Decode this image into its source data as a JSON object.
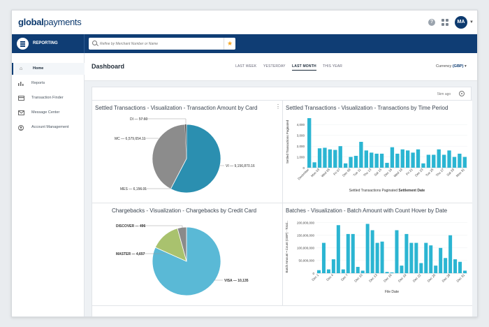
{
  "brand": {
    "logo_bold": "global",
    "logo_light": "payments"
  },
  "topbar": {
    "help_icon": "?",
    "avatar_initials": "MA"
  },
  "reporting": {
    "label": "REPORTING"
  },
  "search": {
    "placeholder": "Refine by Merchant Number or Name"
  },
  "sidebar": {
    "items": [
      {
        "label": "Home",
        "icon": "home-icon",
        "active": true
      },
      {
        "label": "Reports",
        "icon": "bar-chart-icon"
      },
      {
        "label": "Transaction Finder",
        "icon": "card-icon"
      },
      {
        "label": "Message Center",
        "icon": "envelope-icon"
      },
      {
        "label": "Account Management",
        "icon": "user-circle-icon"
      }
    ]
  },
  "header": {
    "title": "Dashboard",
    "ranges": [
      "LAST WEEK",
      "YESTERDAY",
      "LAST MONTH",
      "THIS YEAR"
    ],
    "active_range": "LAST MONTH",
    "currency_label": "Currency",
    "currency_value": "(GBP)"
  },
  "panel": {
    "updated": "5km ago"
  },
  "colors": {
    "brand": "#0f3d74",
    "bar": "#2bb5d2",
    "visa": "#5ab9d6",
    "master": "#a9c26e",
    "grey": "#8a8a8a"
  },
  "widgets": {
    "w1": {
      "title": "Settled Transactions - Visualization - Transaction Amount by Card"
    },
    "w2": {
      "title": "Settled Transactions - Visualization - Transactions by Time Period"
    },
    "w3": {
      "title": "Chargebacks - Visualization - Chargebacks by Credit Card"
    },
    "w4": {
      "title": "Batches - Visualization - Batch Amount with Count Hover by Date"
    }
  },
  "chart_data": [
    {
      "type": "pie",
      "labels": [
        "DI",
        "MC",
        "MES",
        "VI"
      ],
      "values": [
        57.6,
        6579654.11,
        6156.31,
        9156870.16
      ],
      "label_texts": [
        "DI — 57.60",
        "MC — 6,579,654.11",
        "MES — 6,156.31",
        "VI — 9,156,870.16"
      ],
      "colors": [
        "#9b9b9b",
        "#8c8c8c",
        "#6a6a6a",
        "#2b8fb0"
      ]
    },
    {
      "type": "bar",
      "ylabel": "Settled Transactions Paginated",
      "xlabel_prefix": "Settled Transactions Paginated",
      "xlabel_bold": "Settlement Date",
      "yticks": [
        0,
        1000,
        2000,
        3000,
        4000
      ],
      "ytick_labels": [
        "0",
        "1,000",
        "2,000",
        "3,000",
        "4,000"
      ],
      "ylim": [
        0,
        4800
      ],
      "xtick_labels": [
        "December",
        "Mon 03",
        "Wed 05",
        "Fri 07",
        "Dec 09",
        "Tue 11",
        "Thu 13",
        "Sat 15",
        "Dec 16",
        "Wed 19",
        "Fri 21",
        "Dec 23",
        "Tue 25",
        "Thu 27",
        "Sat 29",
        "Mon 31"
      ],
      "values": [
        4600,
        500,
        1800,
        1850,
        1700,
        1650,
        2000,
        400,
        1000,
        1100,
        2400,
        1600,
        1400,
        1300,
        1300,
        450,
        1900,
        1300,
        1700,
        1600,
        1400,
        1700,
        400,
        1200,
        1200,
        1700,
        1200,
        1600,
        1000,
        1300,
        1000
      ]
    },
    {
      "type": "pie",
      "labels": [
        "DISCOVER",
        "MASTER",
        "VISA"
      ],
      "values": [
        496,
        4657,
        10135
      ],
      "label_texts": [
        "DISCOVER — 496",
        "MASTER — 4,657",
        "VISA — 10,135"
      ],
      "colors": [
        "#8a8a8a",
        "#a9c26e",
        "#5ab9d6"
      ]
    },
    {
      "type": "bar",
      "ylabel": "Batch Amount • Count (GBP) - Total...",
      "xlabel": "File Date",
      "yticks": [
        0,
        50000000,
        100000000,
        150000000,
        200000000
      ],
      "ytick_labels": [
        "0",
        "50,000,000",
        "100,000,000",
        "150,000,000",
        "200,000,000"
      ],
      "ylim": [
        0,
        210000000
      ],
      "xtick_labels": [
        "Dec 1",
        "Dec 4",
        "Dec 7",
        "Dec 10",
        "Dec 13",
        "Dec 16",
        "Dec 19",
        "Dec 22",
        "Dec 25",
        "Dec 28",
        "Dec 31"
      ],
      "values": [
        12000000,
        120000000,
        15000000,
        55000000,
        190000000,
        15000000,
        155000000,
        155000000,
        25000000,
        10000000,
        195000000,
        170000000,
        120000000,
        125000000,
        5000000,
        3000000,
        170000000,
        30000000,
        155000000,
        120000000,
        120000000,
        40000000,
        120000000,
        110000000,
        30000000,
        100000000,
        60000000,
        150000000,
        55000000,
        45000000,
        10000000
      ]
    }
  ]
}
